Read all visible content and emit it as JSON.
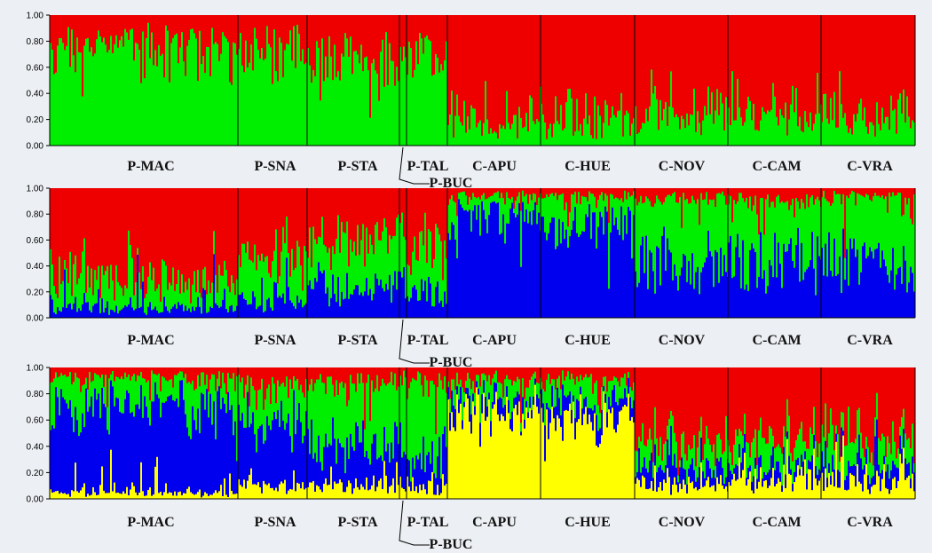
{
  "chart_data": [
    {
      "type": "bar",
      "subtype": "stacked-structure",
      "yticks": [
        "0.00",
        "0.20",
        "0.40",
        "0.60",
        "0.80",
        "1.00"
      ],
      "ylim": [
        0,
        1
      ],
      "populations": [
        "P-MAC",
        "P-SNA",
        "P-STA",
        "P-BUC",
        "P-TAL",
        "C-APU",
        "C-HUE",
        "C-NOV",
        "C-CAM",
        "C-VRA"
      ],
      "labels": [
        "P-MAC",
        "P-SNA",
        "P-STA",
        "P-TAL",
        "C-APU",
        "C-HUE",
        "C-NOV",
        "C-CAM",
        "C-VRA"
      ],
      "callout": "P-BUC",
      "clusters": 2,
      "colors": [
        "#ee0000",
        "#00ee00"
      ],
      "mean_proportions": {
        "P-MAC": [
          0.22,
          0.78
        ],
        "P-SNA": [
          0.27,
          0.73
        ],
        "P-STA": [
          0.33,
          0.67
        ],
        "P-BUC": [
          0.3,
          0.7
        ],
        "P-TAL": [
          0.3,
          0.7
        ],
        "C-APU": [
          0.82,
          0.18
        ],
        "C-HUE": [
          0.82,
          0.18
        ],
        "C-NOV": [
          0.77,
          0.23
        ],
        "C-CAM": [
          0.72,
          0.28
        ],
        "C-VRA": [
          0.8,
          0.2
        ]
      }
    },
    {
      "type": "bar",
      "subtype": "stacked-structure",
      "yticks": [
        "0.00",
        "0.20",
        "0.40",
        "0.60",
        "0.80",
        "1.00"
      ],
      "ylim": [
        0,
        1
      ],
      "populations": [
        "P-MAC",
        "P-SNA",
        "P-STA",
        "P-BUC",
        "P-TAL",
        "C-APU",
        "C-HUE",
        "C-NOV",
        "C-CAM",
        "C-VRA"
      ],
      "labels": [
        "P-MAC",
        "P-SNA",
        "P-STA",
        "P-TAL",
        "C-APU",
        "C-HUE",
        "C-NOV",
        "C-CAM",
        "C-VRA"
      ],
      "callout": "P-BUC",
      "clusters": 3,
      "colors": [
        "#ee0000",
        "#00ee00",
        "#0000ee"
      ],
      "mean_proportions": {
        "P-MAC": [
          0.72,
          0.2,
          0.08
        ],
        "P-SNA": [
          0.58,
          0.3,
          0.12
        ],
        "P-STA": [
          0.42,
          0.38,
          0.2
        ],
        "P-BUC": [
          0.4,
          0.4,
          0.2
        ],
        "P-TAL": [
          0.44,
          0.36,
          0.2
        ],
        "C-APU": [
          0.06,
          0.14,
          0.8
        ],
        "C-HUE": [
          0.06,
          0.2,
          0.74
        ],
        "C-NOV": [
          0.08,
          0.5,
          0.42
        ],
        "C-CAM": [
          0.1,
          0.45,
          0.45
        ],
        "C-VRA": [
          0.06,
          0.52,
          0.42
        ]
      }
    },
    {
      "type": "bar",
      "subtype": "stacked-structure",
      "yticks": [
        "0.00",
        "0.20",
        "0.40",
        "0.60",
        "0.80",
        "1.00"
      ],
      "ylim": [
        0,
        1
      ],
      "populations": [
        "P-MAC",
        "P-SNA",
        "P-STA",
        "P-BUC",
        "P-TAL",
        "C-APU",
        "C-HUE",
        "C-NOV",
        "C-CAM",
        "C-VRA"
      ],
      "labels": [
        "P-MAC",
        "P-SNA",
        "P-STA",
        "P-TAL",
        "C-APU",
        "C-HUE",
        "C-NOV",
        "C-CAM",
        "C-VRA"
      ],
      "callout": "P-BUC",
      "clusters": 4,
      "colors": [
        "#ee0000",
        "#00ee00",
        "#0000ee",
        "#ffff00"
      ],
      "mean_proportions": {
        "P-MAC": [
          0.08,
          0.2,
          0.67,
          0.05
        ],
        "P-SNA": [
          0.15,
          0.28,
          0.47,
          0.1
        ],
        "P-STA": [
          0.12,
          0.45,
          0.33,
          0.1
        ],
        "P-BUC": [
          0.1,
          0.5,
          0.3,
          0.1
        ],
        "P-TAL": [
          0.12,
          0.6,
          0.2,
          0.08
        ],
        "C-APU": [
          0.08,
          0.12,
          0.1,
          0.7
        ],
        "C-HUE": [
          0.1,
          0.14,
          0.12,
          0.64
        ],
        "C-NOV": [
          0.58,
          0.18,
          0.12,
          0.12
        ],
        "C-CAM": [
          0.55,
          0.2,
          0.1,
          0.15
        ],
        "C-VRA": [
          0.55,
          0.18,
          0.12,
          0.15
        ]
      }
    }
  ]
}
